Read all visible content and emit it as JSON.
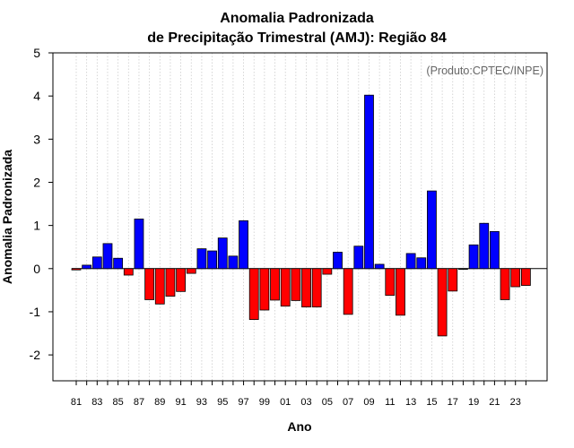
{
  "chart_data": {
    "type": "bar",
    "title_line1": "Anomalia Padronizada",
    "title_line2": "de Precipitação Trimestral (AMJ): Região 84",
    "xlabel": "Ano",
    "ylabel": "Anomalia Padronizada",
    "credit": "(Produto:CPTEC/INPE)",
    "ylim": [
      -2.6,
      5
    ],
    "yticks": [
      -2,
      -1,
      0,
      1,
      2,
      3,
      4,
      5
    ],
    "ytick_labels": [
      "-2",
      "-1",
      "0",
      "1",
      "2",
      "3",
      "4",
      "5"
    ],
    "xtick_labels": [
      "81",
      "83",
      "85",
      "87",
      "89",
      "91",
      "93",
      "95",
      "97",
      "99",
      "01",
      "03",
      "05",
      "07",
      "09",
      "11",
      "13",
      "15",
      "17",
      "19",
      "21",
      "23"
    ],
    "categories": [
      "1981",
      "1982",
      "1983",
      "1984",
      "1985",
      "1986",
      "1987",
      "1988",
      "1989",
      "1990",
      "1991",
      "1992",
      "1993",
      "1994",
      "1995",
      "1996",
      "1997",
      "1998",
      "1999",
      "2000",
      "2001",
      "2002",
      "2003",
      "2004",
      "2005",
      "2006",
      "2007",
      "2008",
      "2009",
      "2010",
      "2011",
      "2012",
      "2013",
      "2014",
      "2015",
      "2016",
      "2017",
      "2018",
      "2019",
      "2020",
      "2021",
      "2022",
      "2023",
      "2024"
    ],
    "values": [
      -0.03,
      0.08,
      0.27,
      0.58,
      0.24,
      -0.15,
      1.15,
      -0.72,
      -0.82,
      -0.64,
      -0.53,
      -0.11,
      0.46,
      0.41,
      0.71,
      0.29,
      1.11,
      -1.18,
      -0.96,
      -0.73,
      -0.87,
      -0.74,
      -0.89,
      -0.89,
      -0.13,
      0.38,
      -1.06,
      0.52,
      4.02,
      0.1,
      -0.62,
      -1.08,
      0.35,
      0.25,
      1.8,
      -1.56,
      -0.52,
      0.0,
      0.55,
      1.05,
      0.86,
      -0.72,
      -0.42,
      -0.39
    ],
    "positive_color": "#0000ff",
    "negative_color": "#ff0000",
    "grid": true,
    "grid_color": "#cccccc"
  }
}
